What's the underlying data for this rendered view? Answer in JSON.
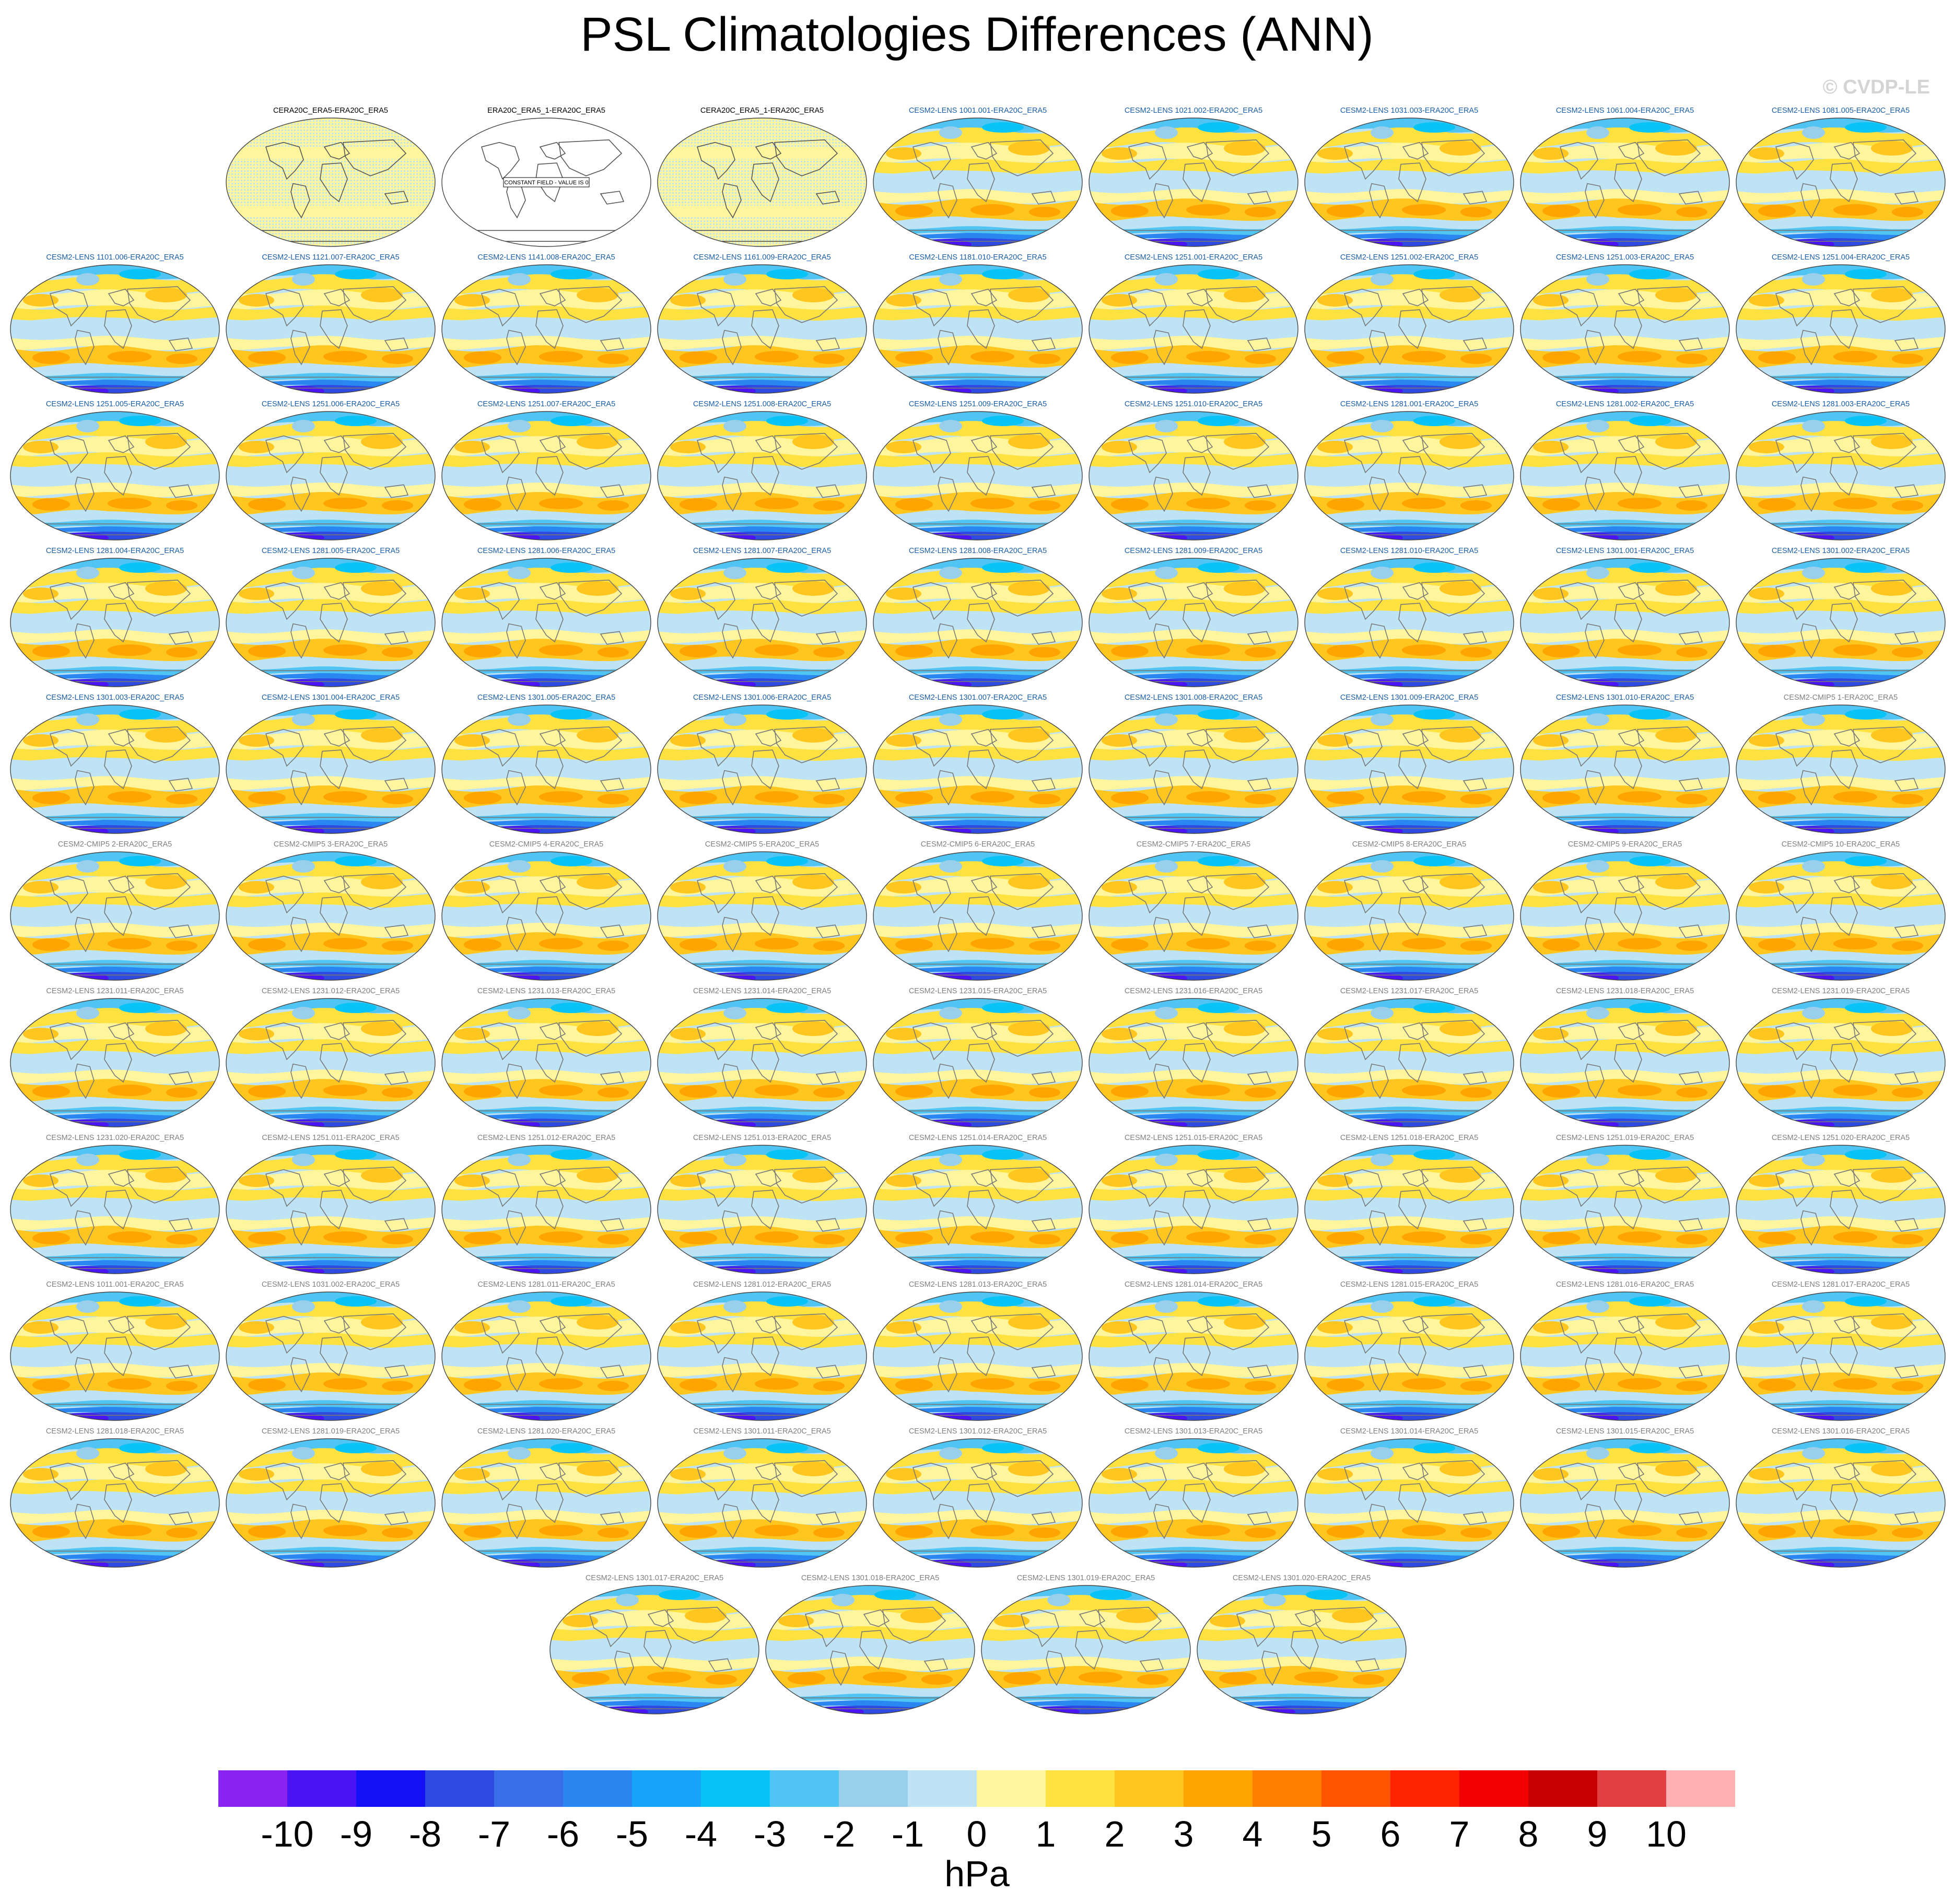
{
  "title": "PSL Climatologies Differences (ANN)",
  "watermark": "© CVDP-LE",
  "units": "hPa",
  "constant_field_text": "CONSTANT FIELD - VALUE IS 0",
  "colorbar": {
    "labels": [
      "-10",
      "-9",
      "-8",
      "-7",
      "-6",
      "-5",
      "-4",
      "-3",
      "-2",
      "-1",
      "0",
      "1",
      "2",
      "3",
      "4",
      "5",
      "6",
      "7",
      "8",
      "9",
      "10"
    ],
    "colors": [
      "#8a22f0",
      "#4a14f5",
      "#1410f5",
      "#2e4ae0",
      "#3a6ee8",
      "#2a86f0",
      "#18a4f8",
      "#08c4f6",
      "#50c4f2",
      "#9acfec",
      "#bde3f5",
      "#fff59c",
      "#ffe13f",
      "#ffc620",
      "#ffa400",
      "#ff7e00",
      "#ff5500",
      "#ff2400",
      "#f00000",
      "#c80000",
      "#e04040",
      "#ffb0b0"
    ]
  },
  "panels": [
    {
      "label": "CERA20C_ERA5-ERA20C_ERA5",
      "kind": "noise",
      "title_color": "#000000"
    },
    {
      "label": "ERA20C_ERA5_1-ERA20C_ERA5",
      "kind": "constant",
      "title_color": "#000000"
    },
    {
      "label": "CERA20C_ERA5_1-ERA20C_ERA5",
      "kind": "noise",
      "title_color": "#000000"
    },
    {
      "label": "CESM2-LENS 1001.001-ERA20C_ERA5",
      "kind": "field",
      "title_color": "#1b5ea8"
    },
    {
      "label": "CESM2-LENS 1021.002-ERA20C_ERA5",
      "kind": "field",
      "title_color": "#1b5ea8"
    },
    {
      "label": "CESM2-LENS 1031.003-ERA20C_ERA5",
      "kind": "field",
      "title_color": "#1b5ea8"
    },
    {
      "label": "CESM2-LENS 1061.004-ERA20C_ERA5",
      "kind": "field",
      "title_color": "#1b5ea8"
    },
    {
      "label": "CESM2-LENS 1081.005-ERA20C_ERA5",
      "kind": "field",
      "title_color": "#1b5ea8"
    },
    {
      "label": "CESM2-LENS 1101.006-ERA20C_ERA5",
      "kind": "field",
      "title_color": "#1b5ea8"
    },
    {
      "label": "CESM2-LENS 1121.007-ERA20C_ERA5",
      "kind": "field",
      "title_color": "#1b5ea8"
    },
    {
      "label": "CESM2-LENS 1141.008-ERA20C_ERA5",
      "kind": "field",
      "title_color": "#1b5ea8"
    },
    {
      "label": "CESM2-LENS 1161.009-ERA20C_ERA5",
      "kind": "field",
      "title_color": "#1b5ea8"
    },
    {
      "label": "CESM2-LENS 1181.010-ERA20C_ERA5",
      "kind": "field",
      "title_color": "#1b5ea8"
    },
    {
      "label": "CESM2-LENS 1251.001-ERA20C_ERA5",
      "kind": "field",
      "title_color": "#1b5ea8"
    },
    {
      "label": "CESM2-LENS 1251.002-ERA20C_ERA5",
      "kind": "field",
      "title_color": "#1b5ea8"
    },
    {
      "label": "CESM2-LENS 1251.003-ERA20C_ERA5",
      "kind": "field",
      "title_color": "#1b5ea8"
    },
    {
      "label": "CESM2-LENS 1251.004-ERA20C_ERA5",
      "kind": "field",
      "title_color": "#1b5ea8"
    },
    {
      "label": "CESM2-LENS 1251.005-ERA20C_ERA5",
      "kind": "field",
      "title_color": "#1b5ea8"
    },
    {
      "label": "CESM2-LENS 1251.006-ERA20C_ERA5",
      "kind": "field",
      "title_color": "#1b5ea8"
    },
    {
      "label": "CESM2-LENS 1251.007-ERA20C_ERA5",
      "kind": "field",
      "title_color": "#1b5ea8"
    },
    {
      "label": "CESM2-LENS 1251.008-ERA20C_ERA5",
      "kind": "field",
      "title_color": "#1b5ea8"
    },
    {
      "label": "CESM2-LENS 1251.009-ERA20C_ERA5",
      "kind": "field",
      "title_color": "#1b5ea8"
    },
    {
      "label": "CESM2-LENS 1251.010-ERA20C_ERA5",
      "kind": "field",
      "title_color": "#1b5ea8"
    },
    {
      "label": "CESM2-LENS 1281.001-ERA20C_ERA5",
      "kind": "field",
      "title_color": "#1b5ea8"
    },
    {
      "label": "CESM2-LENS 1281.002-ERA20C_ERA5",
      "kind": "field",
      "title_color": "#1b5ea8"
    },
    {
      "label": "CESM2-LENS 1281.003-ERA20C_ERA5",
      "kind": "field",
      "title_color": "#1b5ea8"
    },
    {
      "label": "CESM2-LENS 1281.004-ERA20C_ERA5",
      "kind": "field",
      "title_color": "#1b5ea8"
    },
    {
      "label": "CESM2-LENS 1281.005-ERA20C_ERA5",
      "kind": "field",
      "title_color": "#1b5ea8"
    },
    {
      "label": "CESM2-LENS 1281.006-ERA20C_ERA5",
      "kind": "field",
      "title_color": "#1b5ea8"
    },
    {
      "label": "CESM2-LENS 1281.007-ERA20C_ERA5",
      "kind": "field",
      "title_color": "#1b5ea8"
    },
    {
      "label": "CESM2-LENS 1281.008-ERA20C_ERA5",
      "kind": "field",
      "title_color": "#1b5ea8"
    },
    {
      "label": "CESM2-LENS 1281.009-ERA20C_ERA5",
      "kind": "field",
      "title_color": "#1b5ea8"
    },
    {
      "label": "CESM2-LENS 1281.010-ERA20C_ERA5",
      "kind": "field",
      "title_color": "#1b5ea8"
    },
    {
      "label": "CESM2-LENS 1301.001-ERA20C_ERA5",
      "kind": "field",
      "title_color": "#1b5ea8"
    },
    {
      "label": "CESM2-LENS 1301.002-ERA20C_ERA5",
      "kind": "field",
      "title_color": "#1b5ea8"
    },
    {
      "label": "CESM2-LENS 1301.003-ERA20C_ERA5",
      "kind": "field",
      "title_color": "#1b5ea8"
    },
    {
      "label": "CESM2-LENS 1301.004-ERA20C_ERA5",
      "kind": "field",
      "title_color": "#1b5ea8"
    },
    {
      "label": "CESM2-LENS 1301.005-ERA20C_ERA5",
      "kind": "field",
      "title_color": "#1b5ea8"
    },
    {
      "label": "CESM2-LENS 1301.006-ERA20C_ERA5",
      "kind": "field",
      "title_color": "#1b5ea8"
    },
    {
      "label": "CESM2-LENS 1301.007-ERA20C_ERA5",
      "kind": "field",
      "title_color": "#1b5ea8"
    },
    {
      "label": "CESM2-LENS 1301.008-ERA20C_ERA5",
      "kind": "field",
      "title_color": "#1b5ea8"
    },
    {
      "label": "CESM2-LENS 1301.009-ERA20C_ERA5",
      "kind": "field",
      "title_color": "#1b5ea8"
    },
    {
      "label": "CESM2-LENS 1301.010-ERA20C_ERA5",
      "kind": "field",
      "title_color": "#1b5ea8"
    },
    {
      "label": "CESM2-CMIP5 1-ERA20C_ERA5",
      "kind": "field",
      "title_color": "#808080"
    },
    {
      "label": "CESM2-CMIP5 2-ERA20C_ERA5",
      "kind": "field",
      "title_color": "#808080"
    },
    {
      "label": "CESM2-CMIP5 3-ERA20C_ERA5",
      "kind": "field",
      "title_color": "#808080"
    },
    {
      "label": "CESM2-CMIP5 4-ERA20C_ERA5",
      "kind": "field",
      "title_color": "#808080"
    },
    {
      "label": "CESM2-CMIP5 5-ERA20C_ERA5",
      "kind": "field",
      "title_color": "#808080"
    },
    {
      "label": "CESM2-CMIP5 6-ERA20C_ERA5",
      "kind": "field",
      "title_color": "#808080"
    },
    {
      "label": "CESM2-CMIP5 7-ERA20C_ERA5",
      "kind": "field",
      "title_color": "#808080"
    },
    {
      "label": "CESM2-CMIP5 8-ERA20C_ERA5",
      "kind": "field",
      "title_color": "#808080"
    },
    {
      "label": "CESM2-CMIP5 9-ERA20C_ERA5",
      "kind": "field",
      "title_color": "#808080"
    },
    {
      "label": "CESM2-CMIP5 10-ERA20C_ERA5",
      "kind": "field",
      "title_color": "#808080"
    },
    {
      "label": "CESM2-LENS 1231.011-ERA20C_ERA5",
      "kind": "field",
      "title_color": "#808080"
    },
    {
      "label": "CESM2-LENS 1231.012-ERA20C_ERA5",
      "kind": "field",
      "title_color": "#808080"
    },
    {
      "label": "CESM2-LENS 1231.013-ERA20C_ERA5",
      "kind": "field",
      "title_color": "#808080"
    },
    {
      "label": "CESM2-LENS 1231.014-ERA20C_ERA5",
      "kind": "field",
      "title_color": "#808080"
    },
    {
      "label": "CESM2-LENS 1231.015-ERA20C_ERA5",
      "kind": "field",
      "title_color": "#808080"
    },
    {
      "label": "CESM2-LENS 1231.016-ERA20C_ERA5",
      "kind": "field",
      "title_color": "#808080"
    },
    {
      "label": "CESM2-LENS 1231.017-ERA20C_ERA5",
      "kind": "field",
      "title_color": "#808080"
    },
    {
      "label": "CESM2-LENS 1231.018-ERA20C_ERA5",
      "kind": "field",
      "title_color": "#808080"
    },
    {
      "label": "CESM2-LENS 1231.019-ERA20C_ERA5",
      "kind": "field",
      "title_color": "#808080"
    },
    {
      "label": "CESM2-LENS 1231.020-ERA20C_ERA5",
      "kind": "field",
      "title_color": "#808080"
    },
    {
      "label": "CESM2-LENS 1251.011-ERA20C_ERA5",
      "kind": "field",
      "title_color": "#808080"
    },
    {
      "label": "CESM2-LENS 1251.012-ERA20C_ERA5",
      "kind": "field",
      "title_color": "#808080"
    },
    {
      "label": "CESM2-LENS 1251.013-ERA20C_ERA5",
      "kind": "field",
      "title_color": "#808080"
    },
    {
      "label": "CESM2-LENS 1251.014-ERA20C_ERA5",
      "kind": "field",
      "title_color": "#808080"
    },
    {
      "label": "CESM2-LENS 1251.015-ERA20C_ERA5",
      "kind": "field",
      "title_color": "#808080"
    },
    {
      "label": "CESM2-LENS 1251.018-ERA20C_ERA5",
      "kind": "field",
      "title_color": "#808080"
    },
    {
      "label": "CESM2-LENS 1251.019-ERA20C_ERA5",
      "kind": "field",
      "title_color": "#808080"
    },
    {
      "label": "CESM2-LENS 1251.020-ERA20C_ERA5",
      "kind": "field",
      "title_color": "#808080"
    },
    {
      "label": "CESM2-LENS 1011.001-ERA20C_ERA5",
      "kind": "field",
      "title_color": "#808080"
    },
    {
      "label": "CESM2-LENS 1031.002-ERA20C_ERA5",
      "kind": "field",
      "title_color": "#808080"
    },
    {
      "label": "CESM2-LENS 1281.011-ERA20C_ERA5",
      "kind": "field",
      "title_color": "#808080"
    },
    {
      "label": "CESM2-LENS 1281.012-ERA20C_ERA5",
      "kind": "field",
      "title_color": "#808080"
    },
    {
      "label": "CESM2-LENS 1281.013-ERA20C_ERA5",
      "kind": "field",
      "title_color": "#808080"
    },
    {
      "label": "CESM2-LENS 1281.014-ERA20C_ERA5",
      "kind": "field",
      "title_color": "#808080"
    },
    {
      "label": "CESM2-LENS 1281.015-ERA20C_ERA5",
      "kind": "field",
      "title_color": "#808080"
    },
    {
      "label": "CESM2-LENS 1281.016-ERA20C_ERA5",
      "kind": "field",
      "title_color": "#808080"
    },
    {
      "label": "CESM2-LENS 1281.017-ERA20C_ERA5",
      "kind": "field",
      "title_color": "#808080"
    },
    {
      "label": "CESM2-LENS 1281.018-ERA20C_ERA5",
      "kind": "field",
      "title_color": "#808080"
    },
    {
      "label": "CESM2-LENS 1281.019-ERA20C_ERA5",
      "kind": "field",
      "title_color": "#808080"
    },
    {
      "label": "CESM2-LENS 1281.020-ERA20C_ERA5",
      "kind": "field",
      "title_color": "#808080"
    },
    {
      "label": "CESM2-LENS 1301.011-ERA20C_ERA5",
      "kind": "field",
      "title_color": "#808080"
    },
    {
      "label": "CESM2-LENS 1301.012-ERA20C_ERA5",
      "kind": "field",
      "title_color": "#808080"
    },
    {
      "label": "CESM2-LENS 1301.013-ERA20C_ERA5",
      "kind": "field",
      "title_color": "#808080"
    },
    {
      "label": "CESM2-LENS 1301.014-ERA20C_ERA5",
      "kind": "field",
      "title_color": "#808080"
    },
    {
      "label": "CESM2-LENS 1301.015-ERA20C_ERA5",
      "kind": "field",
      "title_color": "#808080"
    },
    {
      "label": "CESM2-LENS 1301.016-ERA20C_ERA5",
      "kind": "field",
      "title_color": "#808080"
    },
    {
      "label": "CESM2-LENS 1301.017-ERA20C_ERA5",
      "kind": "field",
      "title_color": "#808080"
    },
    {
      "label": "CESM2-LENS 1301.018-ERA20C_ERA5",
      "kind": "field",
      "title_color": "#808080"
    },
    {
      "label": "CESM2-LENS 1301.019-ERA20C_ERA5",
      "kind": "field",
      "title_color": "#808080"
    },
    {
      "label": "CESM2-LENS 1301.020-ERA20C_ERA5",
      "kind": "field",
      "title_color": "#808080"
    }
  ]
}
